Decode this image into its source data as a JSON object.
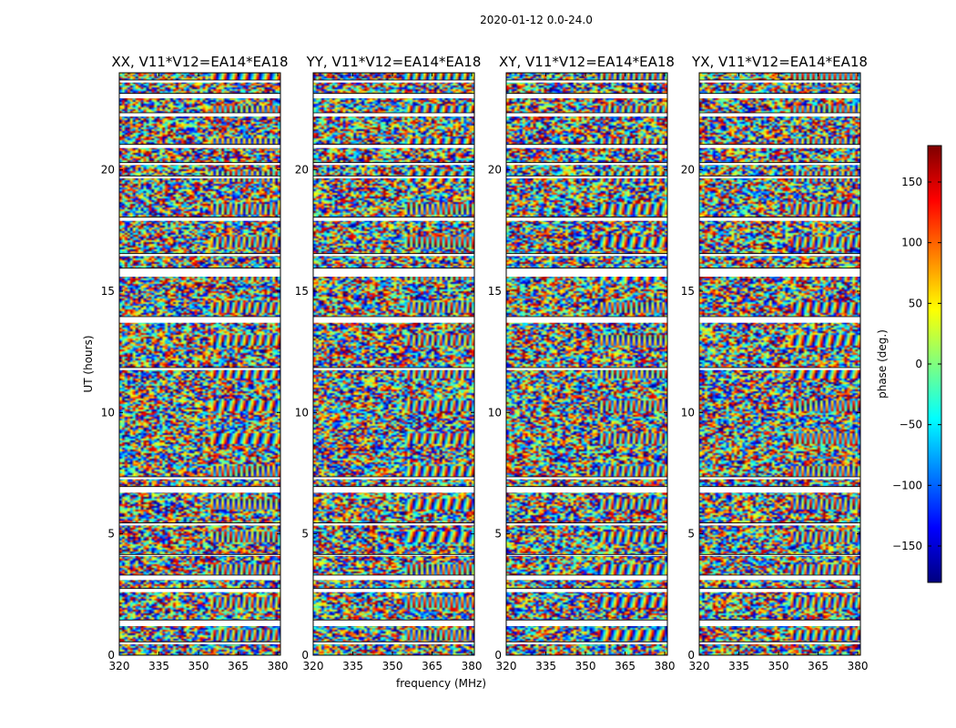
{
  "suptitle": "2020-01-12 0.0-24.0",
  "chart_data": [
    {
      "type": "heatmap",
      "title": "XX, V11*V12=EA14*EA18",
      "ylabel": "UT (hours)",
      "xlabel": "",
      "xlim": [
        320,
        381
      ],
      "ylim": [
        0,
        24
      ],
      "xticks": [
        320,
        335,
        350,
        365,
        380
      ],
      "yticks": [
        0,
        5,
        10,
        15,
        20
      ],
      "xtick_labels": [
        "320",
        "335",
        "350",
        "365",
        "380"
      ],
      "ytick_labels": [
        "0",
        "5",
        "10",
        "15",
        "20"
      ]
    },
    {
      "type": "heatmap",
      "title": "YY, V11*V12=EA14*EA18",
      "ylabel": "",
      "xlabel": "frequency (MHz)",
      "xlim": [
        320,
        381
      ],
      "ylim": [
        0,
        24
      ],
      "xticks": [
        320,
        335,
        350,
        365,
        380
      ],
      "yticks": [
        0,
        5,
        10,
        15,
        20
      ],
      "xtick_labels": [
        "320",
        "335",
        "350",
        "365",
        "380"
      ],
      "ytick_labels": [
        "0",
        "5",
        "10",
        "15",
        "20"
      ]
    },
    {
      "type": "heatmap",
      "title": "XY, V11*V12=EA14*EA18",
      "ylabel": "",
      "xlabel": "",
      "xlim": [
        320,
        381
      ],
      "ylim": [
        0,
        24
      ],
      "xticks": [
        320,
        335,
        350,
        365,
        380
      ],
      "yticks": [
        0,
        5,
        10,
        15,
        20
      ],
      "xtick_labels": [
        "320",
        "335",
        "350",
        "365",
        "380"
      ],
      "ytick_labels": [
        "0",
        "5",
        "10",
        "15",
        "20"
      ]
    },
    {
      "type": "heatmap",
      "title": "YX, V11*V12=EA14*EA18",
      "ylabel": "",
      "xlabel": "",
      "xlim": [
        320,
        381
      ],
      "ylim": [
        0,
        24
      ],
      "xticks": [
        320,
        335,
        350,
        365,
        380
      ],
      "yticks": [
        0,
        5,
        10,
        15,
        20
      ],
      "xtick_labels": [
        "320",
        "335",
        "350",
        "365",
        "380"
      ],
      "ytick_labels": [
        "0",
        "5",
        "10",
        "15",
        "20"
      ]
    }
  ],
  "flag_gaps_hours": [
    [
      0.45,
      0.55
    ],
    [
      1.2,
      1.45
    ],
    [
      2.6,
      2.75
    ],
    [
      3.1,
      3.3
    ],
    [
      4.1,
      4.15
    ],
    [
      5.35,
      5.45
    ],
    [
      6.7,
      6.95
    ],
    [
      7.25,
      7.35
    ],
    [
      11.75,
      11.85
    ],
    [
      13.7,
      13.95
    ],
    [
      15.6,
      15.95
    ],
    [
      16.45,
      16.55
    ],
    [
      17.9,
      18.05
    ],
    [
      19.65,
      19.75
    ],
    [
      20.2,
      20.3
    ],
    [
      20.9,
      21.05
    ],
    [
      22.2,
      22.35
    ],
    [
      22.95,
      23.15
    ],
    [
      23.6,
      23.7
    ]
  ],
  "colorbar": {
    "label": "phase (deg.)",
    "range": [
      -180,
      180
    ],
    "ticks": [
      150,
      100,
      50,
      0,
      -50,
      -100,
      -150
    ],
    "tick_labels": [
      "150",
      "100",
      "50",
      "0",
      "−50",
      "−100",
      "−150"
    ],
    "colormap": "jet"
  },
  "colors": {
    "jet_stops": [
      "#00007f",
      "#0000ff",
      "#007fff",
      "#00ffff",
      "#7fff7f",
      "#ffff00",
      "#ff7f00",
      "#ff0000",
      "#7f0000"
    ]
  }
}
